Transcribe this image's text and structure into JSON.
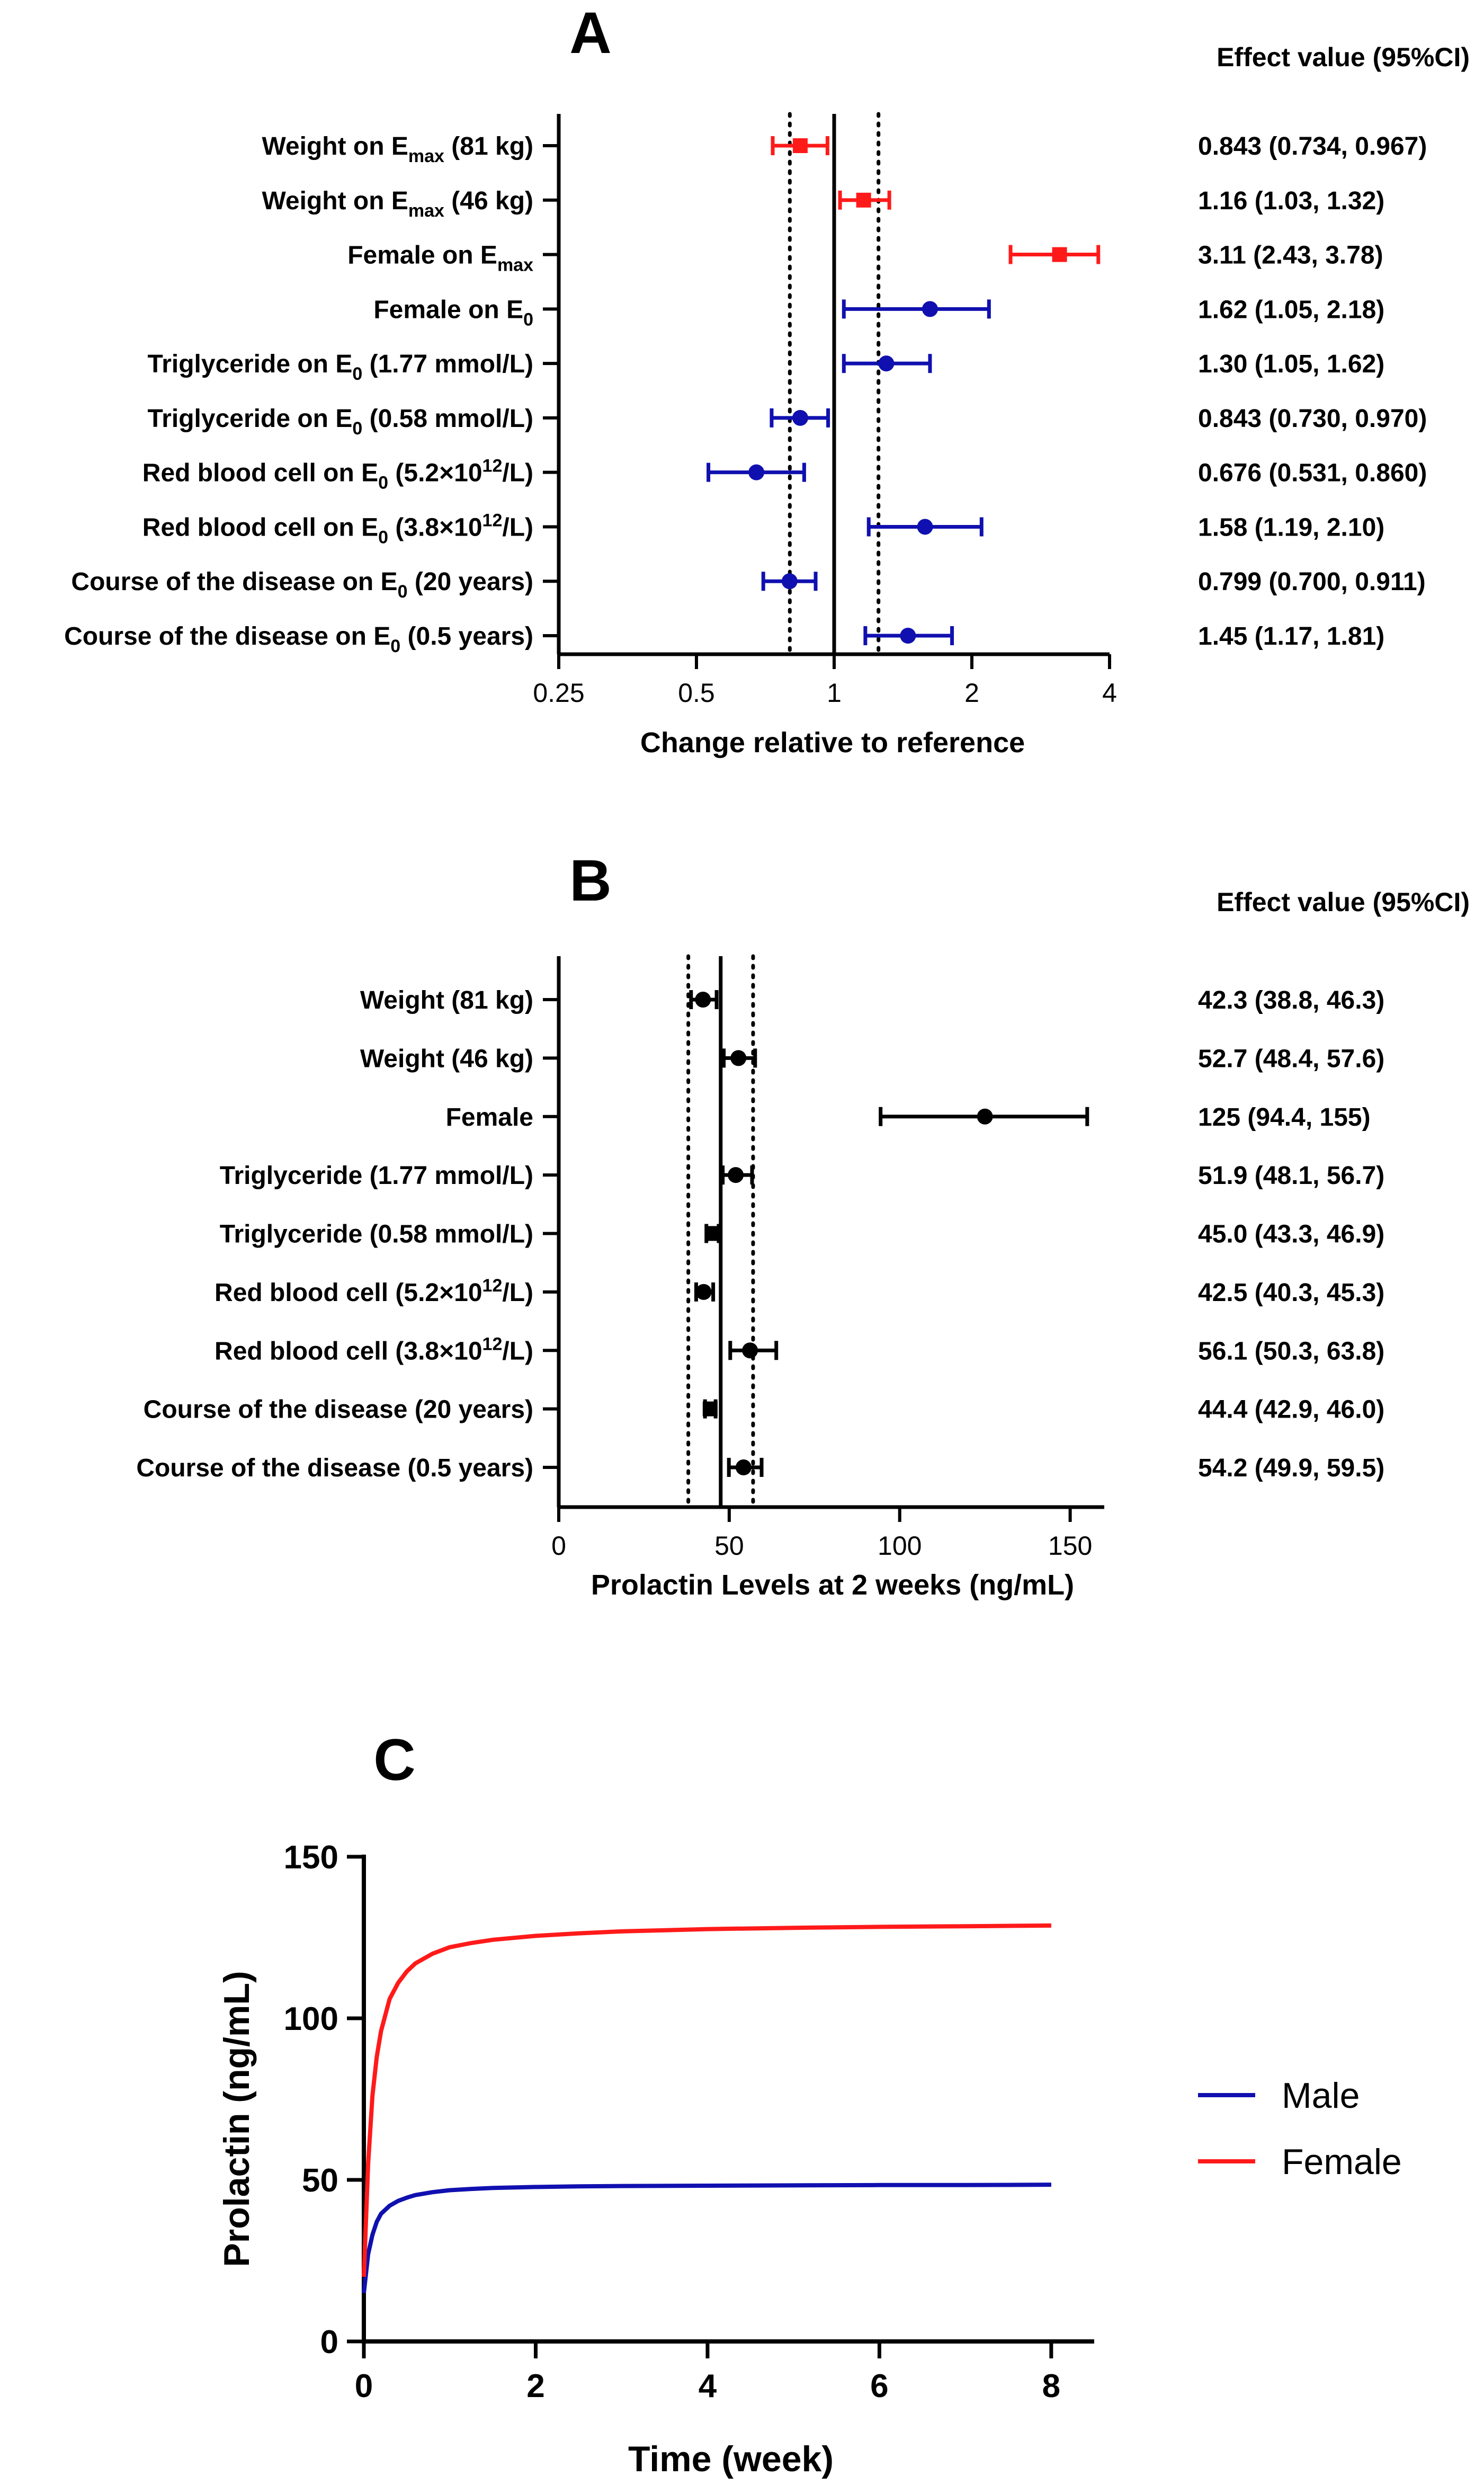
{
  "colors": {
    "red": "#ff1a1a",
    "blue": "#1010b0",
    "black": "#000000"
  },
  "chart_data": [
    {
      "type": "forest",
      "panel_label": "A",
      "scale": "log2",
      "xlabel": "Change relative to reference",
      "xlim": [
        0.25,
        4
      ],
      "x_ticks": [
        0.25,
        0.5,
        1,
        2,
        4
      ],
      "x_tick_labels": [
        "0.25",
        "0.5",
        "1",
        "2",
        "4"
      ],
      "reference_line": 1,
      "dotted_lines": [
        0.8,
        1.25
      ],
      "effect_header": "Effect value (95%CI)",
      "rows": [
        {
          "label": "Weight on E",
          "sub": "max",
          "tail": " (81 kg)",
          "value": 0.843,
          "lo": 0.734,
          "hi": 0.967,
          "marker": "square",
          "color": "red",
          "effect_text": "0.843 (0.734, 0.967)"
        },
        {
          "label": "Weight on E",
          "sub": "max",
          "tail": " (46 kg)",
          "value": 1.16,
          "lo": 1.03,
          "hi": 1.32,
          "marker": "square",
          "color": "red",
          "effect_text": "1.16 (1.03, 1.32)"
        },
        {
          "label": "Female on E",
          "sub": "max",
          "tail": "",
          "value": 3.11,
          "lo": 2.43,
          "hi": 3.78,
          "marker": "square",
          "color": "red",
          "effect_text": "3.11 (2.43, 3.78)"
        },
        {
          "label": "Female on E",
          "sub": "0",
          "tail": "",
          "value": 1.62,
          "lo": 1.05,
          "hi": 2.18,
          "marker": "circle",
          "color": "blue",
          "effect_text": "1.62 (1.05, 2.18)"
        },
        {
          "label": "Triglyceride on E",
          "sub": "0",
          "tail": " (1.77 mmol/L)",
          "value": 1.3,
          "lo": 1.05,
          "hi": 1.62,
          "marker": "circle",
          "color": "blue",
          "effect_text": "1.30 (1.05, 1.62)"
        },
        {
          "label": "Triglyceride on E",
          "sub": "0",
          "tail": " (0.58 mmol/L)",
          "value": 0.843,
          "lo": 0.73,
          "hi": 0.97,
          "marker": "circle",
          "color": "blue",
          "effect_text": "0.843 (0.730, 0.970)"
        },
        {
          "label": "Red blood cell on E",
          "sub": "0",
          "tail": " (5.2×10",
          "sup": "12",
          "tail2": "/L)",
          "value": 0.676,
          "lo": 0.531,
          "hi": 0.86,
          "marker": "circle",
          "color": "blue",
          "effect_text": "0.676 (0.531, 0.860)"
        },
        {
          "label": "Red blood cell on E",
          "sub": "0",
          "tail": " (3.8×10",
          "sup": "12",
          "tail2": "/L)",
          "value": 1.58,
          "lo": 1.19,
          "hi": 2.1,
          "marker": "circle",
          "color": "blue",
          "effect_text": "1.58 (1.19, 2.10)"
        },
        {
          "label": "Course of the disease on E",
          "sub": "0",
          "tail": " (20 years)",
          "value": 0.799,
          "lo": 0.7,
          "hi": 0.911,
          "marker": "circle",
          "color": "blue",
          "effect_text": "0.799 (0.700, 0.911)"
        },
        {
          "label": "Course of the disease on E",
          "sub": "0",
          "tail": " (0.5 years)",
          "value": 1.45,
          "lo": 1.17,
          "hi": 1.81,
          "marker": "circle",
          "color": "blue",
          "effect_text": "1.45 (1.17, 1.81)"
        }
      ]
    },
    {
      "type": "forest",
      "panel_label": "B",
      "scale": "linear",
      "xlabel": "Prolactin Levels at 2 weeks (ng/mL)",
      "xlim": [
        0,
        160
      ],
      "x_ticks": [
        0,
        50,
        100,
        150
      ],
      "x_tick_labels": [
        "0",
        "50",
        "100",
        "150"
      ],
      "reference_line": 47.5,
      "dotted_lines": [
        38,
        57
      ],
      "effect_header": "Effect value (95%CI)",
      "rows": [
        {
          "label": "Weight",
          "tail": " (81 kg)",
          "value": 42.3,
          "lo": 38.8,
          "hi": 46.3,
          "marker": "circle",
          "color": "black",
          "effect_text": "42.3 (38.8, 46.3)"
        },
        {
          "label": "Weight",
          "tail": " (46 kg)",
          "value": 52.7,
          "lo": 48.4,
          "hi": 57.6,
          "marker": "circle",
          "color": "black",
          "effect_text": "52.7 (48.4, 57.6)"
        },
        {
          "label": "Female",
          "tail": "",
          "value": 125,
          "lo": 94.4,
          "hi": 155,
          "marker": "circle",
          "color": "black",
          "effect_text": "125 (94.4, 155)"
        },
        {
          "label": "Triglyceride",
          "tail": " (1.77 mmol/L)",
          "value": 51.9,
          "lo": 48.1,
          "hi": 56.7,
          "marker": "circle",
          "color": "black",
          "effect_text": "51.9 (48.1, 56.7)"
        },
        {
          "label": "Triglyceride",
          "tail": " (0.58 mmol/L)",
          "value": 45.0,
          "lo": 43.3,
          "hi": 46.9,
          "marker": "square",
          "color": "black",
          "effect_text": "45.0 (43.3, 46.9)"
        },
        {
          "label": "Red blood cell",
          "tail": " (5.2×10",
          "sup": "12",
          "tail2": "/L)",
          "value": 42.5,
          "lo": 40.3,
          "hi": 45.3,
          "marker": "circle",
          "color": "black",
          "effect_text": "42.5 (40.3, 45.3)"
        },
        {
          "label": "Red blood cell",
          "tail": " (3.8×10",
          "sup": "12",
          "tail2": "/L)",
          "value": 56.1,
          "lo": 50.3,
          "hi": 63.8,
          "marker": "circle",
          "color": "black",
          "effect_text": "56.1 (50.3, 63.8)"
        },
        {
          "label": "Course of the disease",
          "tail": " (20 years)",
          "value": 44.4,
          "lo": 42.9,
          "hi": 46.0,
          "marker": "square",
          "color": "black",
          "effect_text": "44.4 (42.9, 46.0)"
        },
        {
          "label": "Course of the disease",
          "tail": " (0.5 years)",
          "value": 54.2,
          "lo": 49.9,
          "hi": 59.5,
          "marker": "circle",
          "color": "black",
          "effect_text": "54.2 (49.9, 59.5)"
        }
      ]
    },
    {
      "type": "line",
      "panel_label": "C",
      "xlabel": "Time (week)",
      "ylabel": "Prolactin (ng/mL)",
      "xlim": [
        0,
        8.5
      ],
      "ylim": [
        0,
        150
      ],
      "x_ticks": [
        0,
        2,
        4,
        6,
        8
      ],
      "y_ticks": [
        0,
        50,
        100,
        150
      ],
      "legend_position": "right",
      "series": [
        {
          "name": "Male",
          "color": "blue",
          "x": [
            0,
            0.05,
            0.1,
            0.15,
            0.2,
            0.3,
            0.4,
            0.5,
            0.6,
            0.8,
            1,
            1.25,
            1.5,
            2,
            2.5,
            3,
            4,
            5,
            6,
            7,
            8
          ],
          "y": [
            15,
            27,
            33,
            37,
            39.5,
            42,
            43.5,
            44.5,
            45.3,
            46.2,
            46.8,
            47.2,
            47.5,
            47.8,
            48,
            48.1,
            48.2,
            48.3,
            48.4,
            48.4,
            48.5
          ]
        },
        {
          "name": "Female",
          "color": "red",
          "x": [
            0,
            0.05,
            0.1,
            0.15,
            0.2,
            0.3,
            0.4,
            0.5,
            0.6,
            0.8,
            1,
            1.25,
            1.5,
            2,
            2.5,
            3,
            4,
            5,
            6,
            7,
            8
          ],
          "y": [
            20,
            55,
            76,
            88,
            96,
            106,
            111,
            114.5,
            117,
            120,
            122,
            123.3,
            124.3,
            125.5,
            126.3,
            126.9,
            127.6,
            128,
            128.3,
            128.5,
            128.7
          ]
        }
      ]
    }
  ]
}
